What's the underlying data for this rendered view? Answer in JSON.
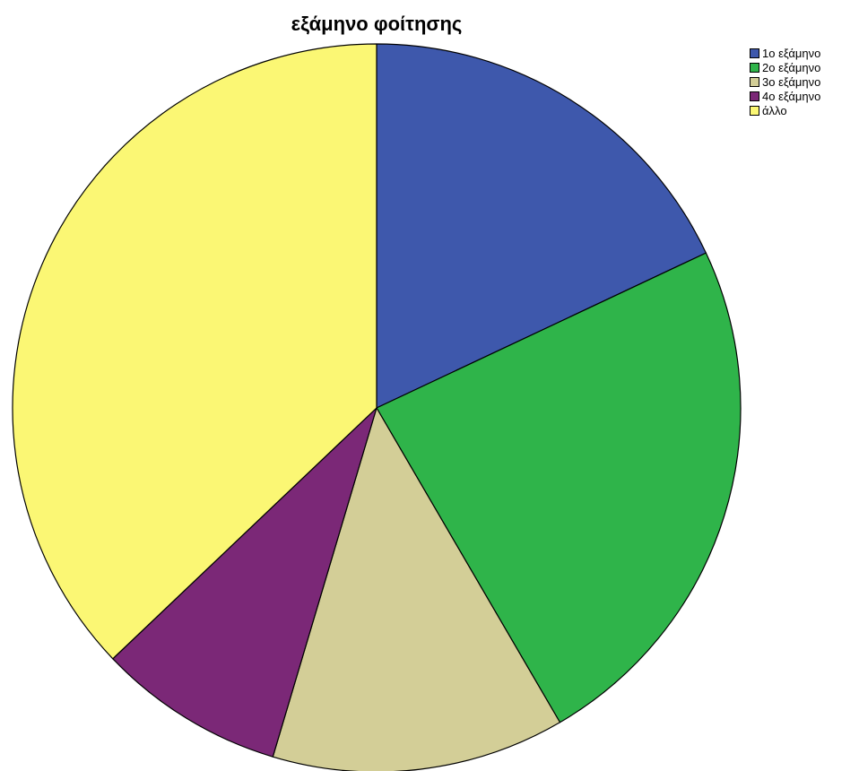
{
  "chart_data": {
    "type": "pie",
    "title": "εξάμηνο φοίτησης",
    "categories": [
      "1ο εξάμηνο",
      "2ο εξάμηνο",
      "3ο εξάμηνο",
      "4ο εξάμηνο",
      "άλλο"
    ],
    "values": [
      18.0,
      23.6,
      13.0,
      8.3,
      37.1
    ],
    "colors": [
      "#3e58ac",
      "#2fb44a",
      "#d3ce97",
      "#7b2877",
      "#fbf774"
    ],
    "start_angle_deg": 0,
    "direction": "clockwise",
    "legend_position": "top-right"
  }
}
